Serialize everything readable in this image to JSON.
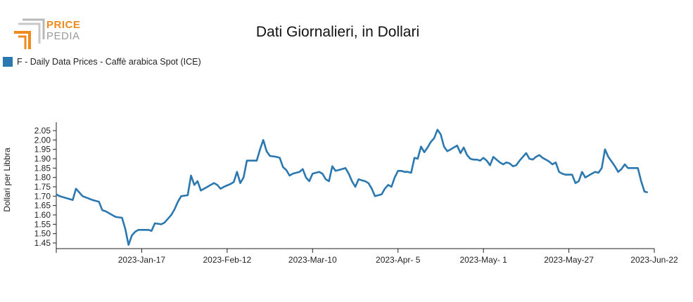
{
  "logo": {
    "line1": "PRICE",
    "line2": "PEDIA",
    "color_orange": "#f08a1c",
    "color_gray": "#9a9a9a"
  },
  "chart_data": {
    "type": "line",
    "title": "Dati Giornalieri, in Dollari",
    "ylabel": "Dollari per Libbra",
    "xlabel": "",
    "ylim": [
      1.42,
      2.08
    ],
    "yticks": [
      1.45,
      1.5,
      1.55,
      1.6,
      1.65,
      1.7,
      1.75,
      1.8,
      1.85,
      1.9,
      1.95,
      2.0,
      2.05
    ],
    "ytick_labels": [
      "1.45",
      "1.50",
      "1.55",
      "1.60",
      "1.65",
      "1.70",
      "1.75",
      "1.80",
      "1.85",
      "1.90",
      "1.95",
      "2.00",
      "2.05"
    ],
    "xlim": [
      "2022-Dec-22",
      "2023-Jun-22"
    ],
    "xticks": [
      "2023-Jan-17",
      "2023-Feb-12",
      "2023-Mar-10",
      "2023-Apr-5",
      "2023-May-1",
      "2023-May-27",
      "2023-Jun-22"
    ],
    "xtick_labels": [
      "2023-Jan-17",
      "2023-Feb-12",
      "2023-Mar-10",
      "2023-Apr- 5",
      "2023-May- 1",
      "2023-May-27",
      "2023-Jun-22"
    ],
    "legend_position": "top-left",
    "grid": false,
    "series": [
      {
        "name": "F - Daily Data Prices - Caffè arabica Spot (ICE)",
        "color": "#2b78b0",
        "points": [
          [
            "2022-Dec-22",
            1.71
          ],
          [
            "2022-Dec-23",
            1.7
          ],
          [
            "2022-Dec-27",
            1.68
          ],
          [
            "2022-Dec-28",
            1.74
          ],
          [
            "2022-Dec-29",
            1.72
          ],
          [
            "2022-Dec-30",
            1.7
          ],
          [
            "2023-Jan-02",
            1.68
          ],
          [
            "2023-Jan-03",
            1.675
          ],
          [
            "2023-Jan-04",
            1.67
          ],
          [
            "2023-Jan-05",
            1.625
          ],
          [
            "2023-Jan-06",
            1.62
          ],
          [
            "2023-Jan-09",
            1.59
          ],
          [
            "2023-Jan-10",
            1.587
          ],
          [
            "2023-Jan-11",
            1.585
          ],
          [
            "2023-Jan-12",
            1.525
          ],
          [
            "2023-Jan-13",
            1.44
          ],
          [
            "2023-Jan-14",
            1.49
          ],
          [
            "2023-Jan-15",
            1.51
          ],
          [
            "2023-Jan-16",
            1.52
          ],
          [
            "2023-Jan-17",
            1.52
          ],
          [
            "2023-Jan-18",
            1.52
          ],
          [
            "2023-Jan-19",
            1.52
          ],
          [
            "2023-Jan-20",
            1.515
          ],
          [
            "2023-Jan-21",
            1.555
          ],
          [
            "2023-Jan-23",
            1.55
          ],
          [
            "2023-Jan-24",
            1.56
          ],
          [
            "2023-Jan-25",
            1.58
          ],
          [
            "2023-Jan-26",
            1.6
          ],
          [
            "2023-Jan-27",
            1.63
          ],
          [
            "2023-Jan-28",
            1.67
          ],
          [
            "2023-Jan-29",
            1.7
          ],
          [
            "2023-Jan-31",
            1.705
          ],
          [
            "2023-Feb-01",
            1.81
          ],
          [
            "2023-Feb-02",
            1.76
          ],
          [
            "2023-Feb-03",
            1.78
          ],
          [
            "2023-Feb-04",
            1.73
          ],
          [
            "2023-Feb-06",
            1.75
          ],
          [
            "2023-Feb-07",
            1.76
          ],
          [
            "2023-Feb-08",
            1.77
          ],
          [
            "2023-Feb-09",
            1.76
          ],
          [
            "2023-Feb-10",
            1.74
          ],
          [
            "2023-Feb-11",
            1.75
          ],
          [
            "2023-Feb-13",
            1.765
          ],
          [
            "2023-Feb-14",
            1.775
          ],
          [
            "2023-Feb-15",
            1.83
          ],
          [
            "2023-Feb-16",
            1.77
          ],
          [
            "2023-Feb-17",
            1.8
          ],
          [
            "2023-Feb-18",
            1.89
          ],
          [
            "2023-Feb-20",
            1.89
          ],
          [
            "2023-Feb-21",
            1.89
          ],
          [
            "2023-Feb-22",
            1.95
          ],
          [
            "2023-Feb-23",
            2.0
          ],
          [
            "2023-Feb-24",
            1.94
          ],
          [
            "2023-Feb-25",
            1.915
          ],
          [
            "2023-Feb-27",
            1.91
          ],
          [
            "2023-Feb-28",
            1.905
          ],
          [
            "2023-Mar-01",
            1.855
          ],
          [
            "2023-Mar-02",
            1.84
          ],
          [
            "2023-Mar-03",
            1.81
          ],
          [
            "2023-Mar-04",
            1.82
          ],
          [
            "2023-Mar-06",
            1.83
          ],
          [
            "2023-Mar-07",
            1.845
          ],
          [
            "2023-Mar-08",
            1.8
          ],
          [
            "2023-Mar-09",
            1.78
          ],
          [
            "2023-Mar-10",
            1.82
          ],
          [
            "2023-Mar-11",
            1.825
          ],
          [
            "2023-Mar-12",
            1.83
          ],
          [
            "2023-Mar-13",
            1.82
          ],
          [
            "2023-Mar-14",
            1.79
          ],
          [
            "2023-Mar-15",
            1.78
          ],
          [
            "2023-Mar-16",
            1.86
          ],
          [
            "2023-Mar-17",
            1.835
          ],
          [
            "2023-Mar-19",
            1.845
          ],
          [
            "2023-Mar-20",
            1.85
          ],
          [
            "2023-Mar-21",
            1.82
          ],
          [
            "2023-Mar-22",
            1.78
          ],
          [
            "2023-Mar-23",
            1.75
          ],
          [
            "2023-Mar-24",
            1.79
          ],
          [
            "2023-Mar-25",
            1.785
          ],
          [
            "2023-Mar-26",
            1.78
          ],
          [
            "2023-Mar-27",
            1.77
          ],
          [
            "2023-Mar-28",
            1.74
          ],
          [
            "2023-Mar-29",
            1.7
          ],
          [
            "2023-Mar-30",
            1.705
          ],
          [
            "2023-Mar-31",
            1.71
          ],
          [
            "2023-Apr-01",
            1.74
          ],
          [
            "2023-Apr-02",
            1.76
          ],
          [
            "2023-Apr-03",
            1.75
          ],
          [
            "2023-Apr-04",
            1.8
          ],
          [
            "2023-Apr-05",
            1.835
          ],
          [
            "2023-Apr-06",
            1.835
          ],
          [
            "2023-Apr-07",
            1.83
          ],
          [
            "2023-Apr-08",
            1.83
          ],
          [
            "2023-Apr-09",
            1.825
          ],
          [
            "2023-Apr-10",
            1.905
          ],
          [
            "2023-Apr-11",
            1.9
          ],
          [
            "2023-Apr-12",
            1.965
          ],
          [
            "2023-Apr-13",
            1.935
          ],
          [
            "2023-Apr-14",
            1.96
          ],
          [
            "2023-Apr-15",
            1.99
          ],
          [
            "2023-Apr-16",
            2.01
          ],
          [
            "2023-Apr-17",
            2.055
          ],
          [
            "2023-Apr-18",
            2.03
          ],
          [
            "2023-Apr-19",
            1.965
          ],
          [
            "2023-Apr-20",
            1.94
          ],
          [
            "2023-Apr-21",
            1.95
          ],
          [
            "2023-Apr-22",
            1.96
          ],
          [
            "2023-Apr-23",
            1.97
          ],
          [
            "2023-Apr-24",
            1.93
          ],
          [
            "2023-Apr-25",
            1.96
          ],
          [
            "2023-Apr-26",
            1.92
          ],
          [
            "2023-Apr-27",
            1.9
          ],
          [
            "2023-Apr-28",
            1.895
          ],
          [
            "2023-Apr-29",
            1.895
          ],
          [
            "2023-Apr-30",
            1.89
          ],
          [
            "2023-May-01",
            1.905
          ],
          [
            "2023-May-02",
            1.89
          ],
          [
            "2023-May-03",
            1.865
          ],
          [
            "2023-May-04",
            1.91
          ],
          [
            "2023-May-05",
            1.895
          ],
          [
            "2023-May-06",
            1.88
          ],
          [
            "2023-May-07",
            1.87
          ],
          [
            "2023-May-08",
            1.88
          ],
          [
            "2023-May-09",
            1.875
          ],
          [
            "2023-May-10",
            1.86
          ],
          [
            "2023-May-11",
            1.865
          ],
          [
            "2023-May-12",
            1.89
          ],
          [
            "2023-May-13",
            1.91
          ],
          [
            "2023-May-14",
            1.93
          ],
          [
            "2023-May-15",
            1.9
          ],
          [
            "2023-May-16",
            1.895
          ],
          [
            "2023-May-17",
            1.91
          ],
          [
            "2023-May-18",
            1.92
          ],
          [
            "2023-May-19",
            1.905
          ],
          [
            "2023-May-20",
            1.895
          ],
          [
            "2023-May-21",
            1.885
          ],
          [
            "2023-May-22",
            1.87
          ],
          [
            "2023-May-23",
            1.88
          ],
          [
            "2023-May-24",
            1.83
          ],
          [
            "2023-May-25",
            1.82
          ],
          [
            "2023-May-26",
            1.815
          ],
          [
            "2023-May-27",
            1.815
          ],
          [
            "2023-May-28",
            1.815
          ],
          [
            "2023-May-29",
            1.77
          ],
          [
            "2023-May-30",
            1.78
          ],
          [
            "2023-May-31",
            1.83
          ],
          [
            "2023-Jun-01",
            1.8
          ],
          [
            "2023-Jun-02",
            1.81
          ],
          [
            "2023-Jun-03",
            1.82
          ],
          [
            "2023-Jun-04",
            1.83
          ],
          [
            "2023-Jun-05",
            1.825
          ],
          [
            "2023-Jun-06",
            1.85
          ],
          [
            "2023-Jun-07",
            1.95
          ],
          [
            "2023-Jun-08",
            1.91
          ],
          [
            "2023-Jun-09",
            1.885
          ],
          [
            "2023-Jun-10",
            1.86
          ],
          [
            "2023-Jun-11",
            1.83
          ],
          [
            "2023-Jun-12",
            1.845
          ],
          [
            "2023-Jun-13",
            1.87
          ],
          [
            "2023-Jun-14",
            1.85
          ],
          [
            "2023-Jun-15",
            1.85
          ],
          [
            "2023-Jun-16",
            1.85
          ],
          [
            "2023-Jun-17",
            1.85
          ],
          [
            "2023-Jun-18",
            1.78
          ],
          [
            "2023-Jun-19",
            1.725
          ],
          [
            "2023-Jun-20",
            1.72
          ]
        ]
      }
    ]
  }
}
